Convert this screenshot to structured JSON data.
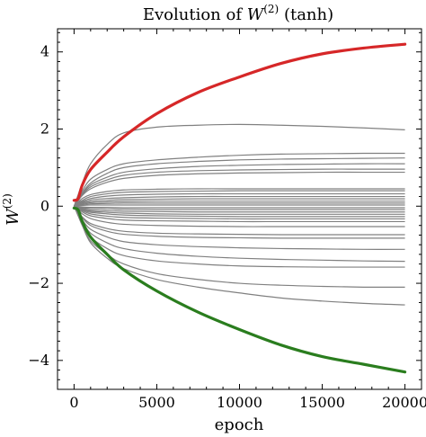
{
  "chart_data": {
    "type": "line",
    "title": "Evolution of W(2) (tanh)",
    "title_parts": {
      "prefix": "Evolution of ",
      "symbol": "W",
      "superscript": "(2)",
      "suffix": " (tanh)"
    },
    "xlabel": "epoch",
    "ylabel": {
      "symbol": "W",
      "superscript": "(2)"
    },
    "xlim": [
      -1000,
      21000
    ],
    "ylim": [
      -4.75,
      4.6
    ],
    "x_ticks": [
      0,
      5000,
      10000,
      15000,
      20000
    ],
    "x_tick_labels": [
      "0",
      "5000",
      "10000",
      "15000",
      "20000"
    ],
    "y_ticks": [
      -4,
      -2,
      0,
      2,
      4
    ],
    "y_tick_labels": [
      "−4",
      "−2",
      "0",
      "2",
      "4"
    ],
    "grid": false,
    "x": [
      0,
      250,
      500,
      1000,
      2000,
      3000,
      5000,
      7500,
      10000,
      12500,
      15000,
      17500,
      20000
    ],
    "highlight_series": [
      {
        "color": "#d62728",
        "values": [
          0.15,
          0.2,
          0.55,
          0.95,
          1.4,
          1.8,
          2.4,
          2.95,
          3.35,
          3.7,
          3.95,
          4.1,
          4.2
        ]
      },
      {
        "color": "#2a7d1e",
        "values": [
          -0.05,
          -0.1,
          -0.4,
          -0.8,
          -1.25,
          -1.65,
          -2.2,
          -2.75,
          -3.2,
          -3.6,
          -3.9,
          -4.1,
          -4.3
        ]
      }
    ],
    "gray_color": "#808080",
    "gray_series": [
      [
        0,
        0.3,
        0.6,
        1.1,
        1.6,
        1.9,
        2.05,
        2.1,
        2.12,
        2.1,
        2.07,
        2.03,
        1.98
      ],
      [
        0,
        0.2,
        0.4,
        0.7,
        0.95,
        1.1,
        1.2,
        1.27,
        1.32,
        1.35,
        1.36,
        1.37,
        1.37
      ],
      [
        0,
        0.18,
        0.35,
        0.6,
        0.85,
        1.0,
        1.1,
        1.16,
        1.2,
        1.22,
        1.23,
        1.24,
        1.25
      ],
      [
        0,
        0.16,
        0.32,
        0.55,
        0.75,
        0.88,
        0.97,
        1.03,
        1.06,
        1.08,
        1.09,
        1.1,
        1.1
      ],
      [
        0,
        0.15,
        0.3,
        0.5,
        0.68,
        0.8,
        0.88,
        0.92,
        0.94,
        0.95,
        0.96,
        0.96,
        0.96
      ],
      [
        0,
        0.14,
        0.28,
        0.45,
        0.62,
        0.72,
        0.8,
        0.84,
        0.86,
        0.87,
        0.88,
        0.88,
        0.88
      ],
      [
        0,
        0.1,
        0.2,
        0.3,
        0.38,
        0.42,
        0.44,
        0.45,
        0.45,
        0.45,
        0.45,
        0.45,
        0.45
      ],
      [
        0,
        0.08,
        0.15,
        0.25,
        0.32,
        0.36,
        0.38,
        0.39,
        0.4,
        0.4,
        0.4,
        0.4,
        0.4
      ],
      [
        0,
        0.06,
        0.12,
        0.2,
        0.26,
        0.29,
        0.31,
        0.32,
        0.32,
        0.32,
        0.32,
        0.32,
        0.32
      ],
      [
        0,
        0.05,
        0.1,
        0.16,
        0.2,
        0.22,
        0.24,
        0.25,
        0.25,
        0.25,
        0.25,
        0.25,
        0.25
      ],
      [
        0,
        0.04,
        0.08,
        0.12,
        0.15,
        0.17,
        0.18,
        0.19,
        0.19,
        0.19,
        0.19,
        0.19,
        0.19
      ],
      [
        0,
        0.03,
        0.06,
        0.09,
        0.11,
        0.12,
        0.13,
        0.13,
        0.13,
        0.13,
        0.13,
        0.13,
        0.13
      ],
      [
        0,
        0.02,
        0.04,
        0.06,
        0.07,
        0.08,
        0.08,
        0.08,
        0.08,
        0.08,
        0.08,
        0.08,
        0.08
      ],
      [
        0,
        0.01,
        0.02,
        0.03,
        0.03,
        0.03,
        0.03,
        0.03,
        0.03,
        0.03,
        0.03,
        0.03,
        0.03
      ],
      [
        0,
        -0.01,
        -0.02,
        -0.03,
        -0.03,
        -0.04,
        -0.04,
        -0.04,
        -0.04,
        -0.04,
        -0.04,
        -0.04,
        -0.04
      ],
      [
        0,
        -0.02,
        -0.04,
        -0.06,
        -0.07,
        -0.08,
        -0.09,
        -0.09,
        -0.09,
        -0.09,
        -0.09,
        -0.09,
        -0.09
      ],
      [
        0,
        -0.03,
        -0.06,
        -0.1,
        -0.12,
        -0.13,
        -0.14,
        -0.15,
        -0.15,
        -0.15,
        -0.15,
        -0.15,
        -0.15
      ],
      [
        0,
        -0.04,
        -0.08,
        -0.13,
        -0.16,
        -0.18,
        -0.2,
        -0.21,
        -0.21,
        -0.21,
        -0.21,
        -0.21,
        -0.21
      ],
      [
        0,
        -0.05,
        -0.1,
        -0.16,
        -0.2,
        -0.23,
        -0.25,
        -0.26,
        -0.27,
        -0.27,
        -0.27,
        -0.27,
        -0.27
      ],
      [
        0,
        -0.06,
        -0.12,
        -0.2,
        -0.26,
        -0.29,
        -0.31,
        -0.32,
        -0.33,
        -0.33,
        -0.33,
        -0.33,
        -0.33
      ],
      [
        0,
        -0.08,
        -0.15,
        -0.25,
        -0.32,
        -0.36,
        -0.38,
        -0.39,
        -0.4,
        -0.4,
        -0.4,
        -0.4,
        -0.4
      ],
      [
        0,
        -0.1,
        -0.2,
        -0.32,
        -0.42,
        -0.47,
        -0.5,
        -0.52,
        -0.53,
        -0.53,
        -0.53,
        -0.53,
        -0.53
      ],
      [
        0,
        -0.14,
        -0.28,
        -0.45,
        -0.58,
        -0.65,
        -0.7,
        -0.72,
        -0.73,
        -0.74,
        -0.74,
        -0.74,
        -0.74
      ],
      [
        0,
        -0.15,
        -0.3,
        -0.5,
        -0.65,
        -0.73,
        -0.78,
        -0.81,
        -0.82,
        -0.83,
        -0.83,
        -0.83,
        -0.83
      ],
      [
        0,
        -0.18,
        -0.36,
        -0.6,
        -0.8,
        -0.92,
        -1.0,
        -1.05,
        -1.08,
        -1.1,
        -1.11,
        -1.12,
        -1.12
      ],
      [
        0,
        -0.2,
        -0.4,
        -0.7,
        -0.95,
        -1.1,
        -1.22,
        -1.3,
        -1.35,
        -1.38,
        -1.4,
        -1.42,
        -1.43
      ],
      [
        0,
        -0.22,
        -0.45,
        -0.8,
        -1.1,
        -1.28,
        -1.42,
        -1.5,
        -1.55,
        -1.57,
        -1.58,
        -1.58,
        -1.58
      ],
      [
        0,
        -0.25,
        -0.5,
        -0.9,
        -1.25,
        -1.5,
        -1.75,
        -1.9,
        -2.0,
        -2.05,
        -2.08,
        -2.1,
        -2.1
      ],
      [
        0,
        -0.25,
        -0.5,
        -0.95,
        -1.35,
        -1.62,
        -1.9,
        -2.1,
        -2.25,
        -2.38,
        -2.46,
        -2.52,
        -2.56
      ]
    ]
  }
}
